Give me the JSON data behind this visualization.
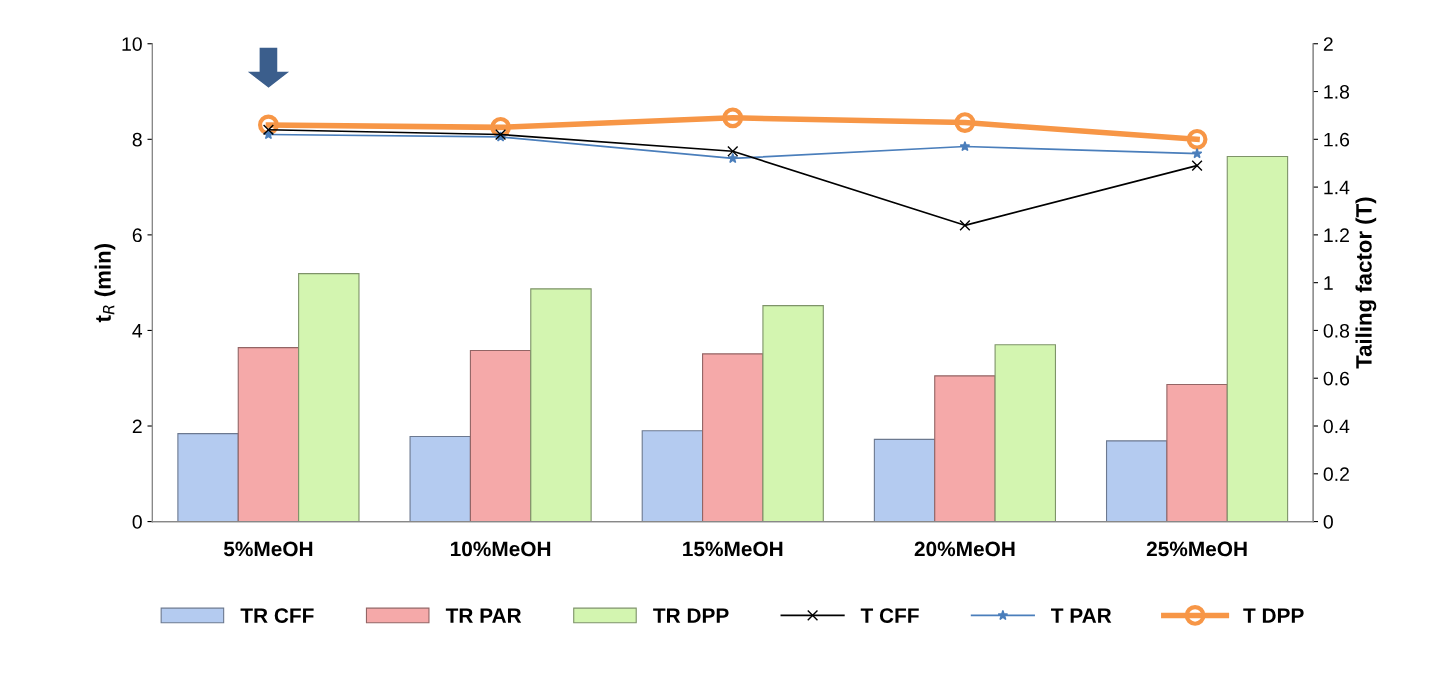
{
  "chart_data": {
    "type": "bar",
    "categories": [
      "5%MeOH",
      "10%MeOH",
      "15%MeOH",
      "20%MeOH",
      "25%MeOH"
    ],
    "ylabel": "t$_{R}$ (min)",
    "y2label": "Tailing factor (T)",
    "ylim": [
      0,
      10
    ],
    "yticks": [
      0,
      2,
      4,
      6,
      8,
      10
    ],
    "y2lim": [
      0,
      2
    ],
    "y2ticks": [
      0,
      0.2,
      0.4,
      0.6,
      0.8,
      1,
      1.2,
      1.4,
      1.6,
      1.8,
      2
    ],
    "grid": false,
    "legend": "bottom",
    "series": [
      {
        "name": "TR CFF",
        "color": "#b4cbf0",
        "values": [
          1.84,
          1.78,
          1.9,
          1.72,
          1.69
        ]
      },
      {
        "name": "TR PAR",
        "color": "#f5a9a9",
        "values": [
          3.64,
          3.58,
          3.51,
          3.05,
          2.87
        ]
      },
      {
        "name": "TR DPP",
        "color": "#d3f5b0",
        "values": [
          5.19,
          4.87,
          4.52,
          3.7,
          7.64
        ]
      },
      {
        "name": "T CFF",
        "type": "line",
        "axis": "y2",
        "color": "#000000",
        "marker": "cross",
        "values": [
          1.64,
          1.62,
          1.55,
          1.24,
          1.49
        ]
      },
      {
        "name": "T PAR",
        "type": "line",
        "axis": "y2",
        "color": "#4a7ebb",
        "marker": "star",
        "values": [
          1.62,
          1.61,
          1.52,
          1.57,
          1.54
        ]
      },
      {
        "name": "T DPP",
        "type": "line",
        "axis": "y2",
        "color": "#f79646",
        "marker": "circle",
        "values": [
          1.66,
          1.65,
          1.69,
          1.67,
          1.6
        ]
      }
    ]
  }
}
